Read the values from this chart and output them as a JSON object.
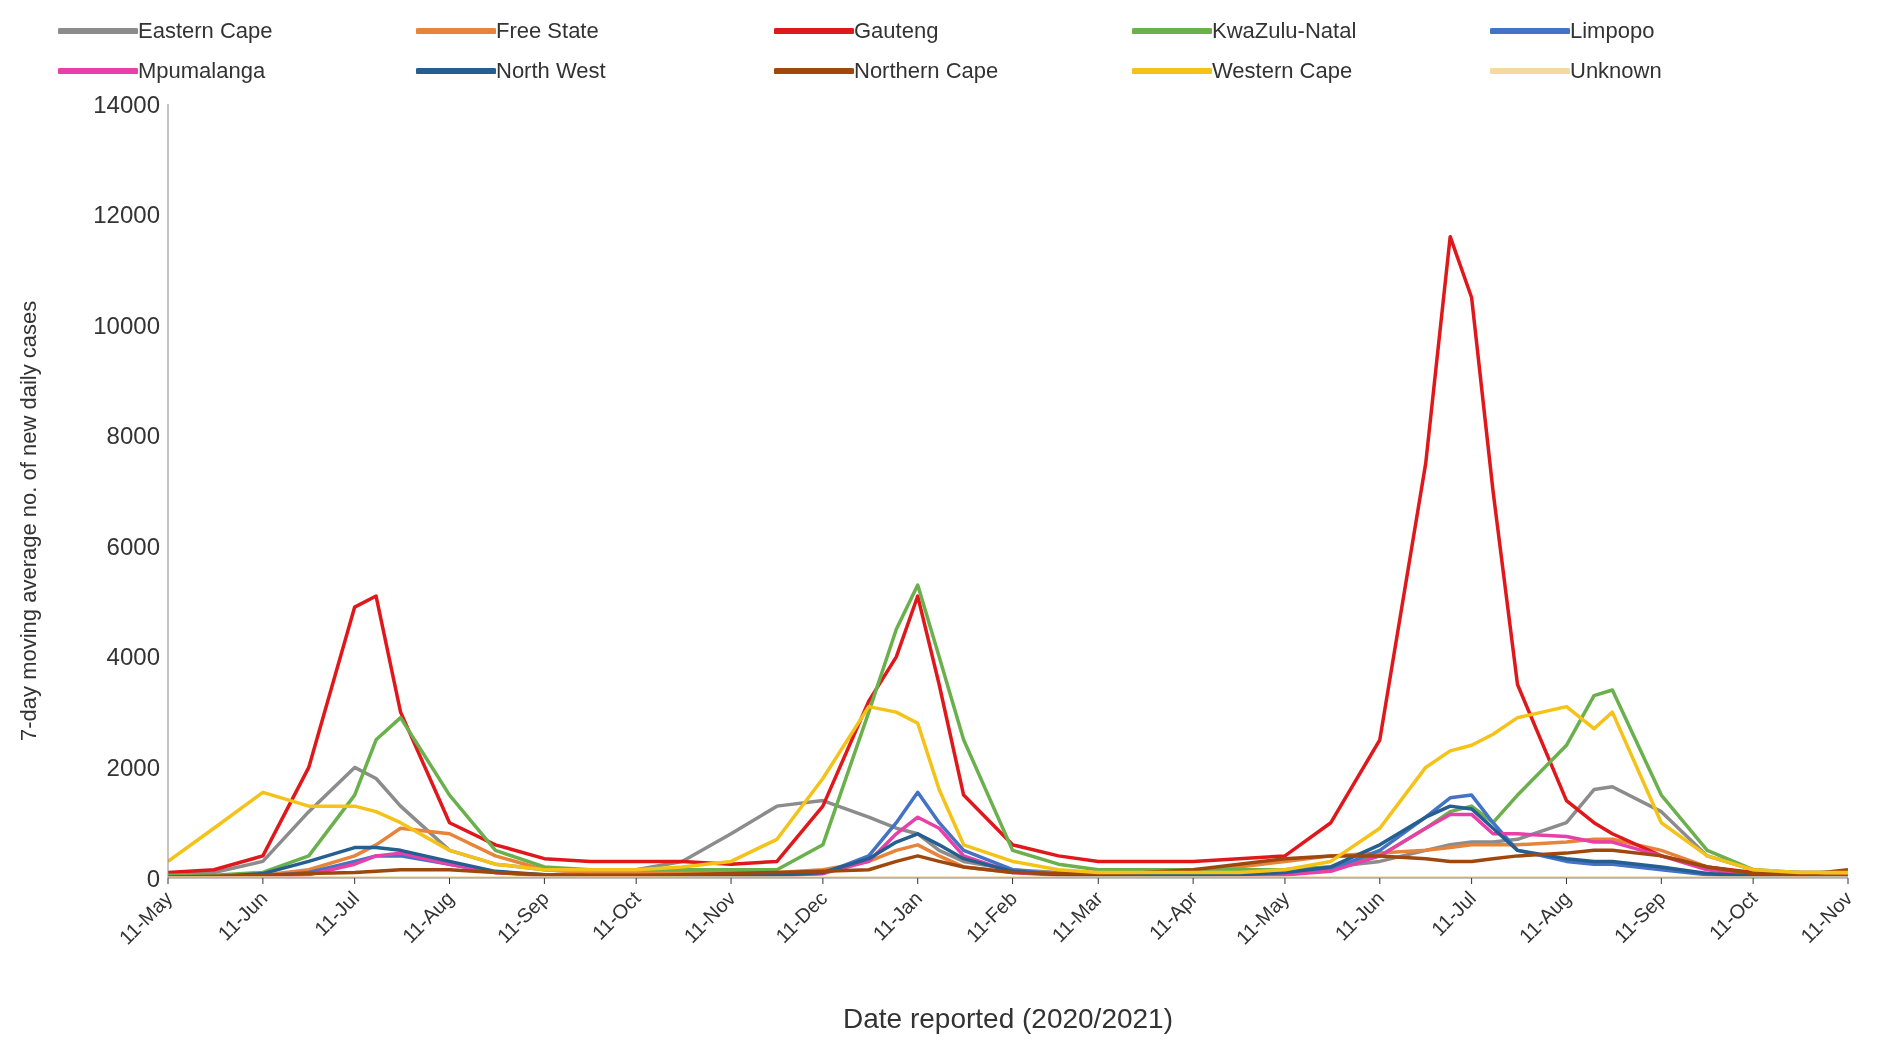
{
  "chart_data": {
    "type": "line",
    "xlabel": "Date reported (2020/2021)",
    "ylabel": "7-day moving average no. of new daily cases",
    "x": [
      "2020-05-11",
      "2020-05-26",
      "2020-06-11",
      "2020-06-26",
      "2020-07-11",
      "2020-07-18",
      "2020-07-26",
      "2020-08-11",
      "2020-08-26",
      "2020-09-11",
      "2020-09-26",
      "2020-10-11",
      "2020-10-26",
      "2020-11-11",
      "2020-11-26",
      "2020-12-11",
      "2020-12-26",
      "2021-01-04",
      "2021-01-11",
      "2021-01-18",
      "2021-01-26",
      "2021-02-11",
      "2021-02-26",
      "2021-03-11",
      "2021-03-26",
      "2021-04-11",
      "2021-04-26",
      "2021-05-11",
      "2021-05-26",
      "2021-06-11",
      "2021-06-26",
      "2021-07-04",
      "2021-07-11",
      "2021-07-18",
      "2021-07-26",
      "2021-08-11",
      "2021-08-20",
      "2021-08-26",
      "2021-09-11",
      "2021-09-26",
      "2021-10-11",
      "2021-10-26",
      "2021-11-11"
    ],
    "series": [
      {
        "name": "Eastern Cape",
        "color": "#8c8c8c",
        "values": [
          50,
          100,
          300,
          1200,
          2000,
          1800,
          1300,
          500,
          250,
          150,
          100,
          150,
          300,
          800,
          1300,
          1400,
          1100,
          900,
          800,
          500,
          300,
          150,
          100,
          80,
          80,
          80,
          100,
          150,
          200,
          300,
          500,
          600,
          650,
          650,
          700,
          1000,
          1600,
          1650,
          1200,
          400,
          150,
          80,
          50
        ]
      },
      {
        "name": "Free State",
        "color": "#e8833a",
        "values": [
          0,
          20,
          50,
          150,
          400,
          600,
          900,
          800,
          400,
          150,
          100,
          100,
          100,
          100,
          100,
          150,
          300,
          500,
          600,
          400,
          200,
          100,
          80,
          80,
          100,
          150,
          200,
          300,
          400,
          450,
          500,
          550,
          600,
          600,
          600,
          650,
          700,
          700,
          500,
          200,
          80,
          50,
          50
        ]
      },
      {
        "name": "Gauteng",
        "color": "#e0181b",
        "values": [
          100,
          150,
          400,
          2000,
          4900,
          5100,
          3000,
          1000,
          600,
          350,
          300,
          300,
          300,
          250,
          300,
          1300,
          3200,
          4000,
          5100,
          3500,
          1500,
          600,
          400,
          300,
          300,
          300,
          350,
          400,
          1000,
          2500,
          7500,
          11600,
          10500,
          7000,
          3500,
          1400,
          1000,
          800,
          400,
          200,
          100,
          100,
          100
        ]
      },
      {
        "name": "KwaZulu-Natal",
        "color": "#6ab04c",
        "values": [
          50,
          50,
          100,
          400,
          1500,
          2500,
          2900,
          1500,
          500,
          200,
          150,
          150,
          150,
          150,
          150,
          600,
          3000,
          4500,
          5300,
          4000,
          2500,
          500,
          250,
          150,
          150,
          150,
          150,
          150,
          200,
          400,
          900,
          1200,
          1300,
          1000,
          1500,
          2400,
          3300,
          3400,
          1500,
          500,
          150,
          100,
          100
        ]
      },
      {
        "name": "Limpopo",
        "color": "#4472c4",
        "values": [
          null,
          null,
          30,
          100,
          300,
          400,
          400,
          250,
          100,
          50,
          30,
          30,
          30,
          30,
          40,
          80,
          400,
          1000,
          1550,
          1000,
          500,
          150,
          60,
          40,
          30,
          30,
          40,
          60,
          150,
          500,
          1100,
          1450,
          1500,
          1000,
          500,
          300,
          250,
          250,
          150,
          60,
          30,
          null,
          null
        ]
      },
      {
        "name": "Mpumalanga",
        "color": "#e83fa8",
        "values": [
          null,
          null,
          20,
          60,
          250,
          400,
          450,
          250,
          100,
          40,
          30,
          30,
          30,
          30,
          40,
          80,
          300,
          800,
          1100,
          900,
          400,
          100,
          50,
          30,
          30,
          30,
          40,
          60,
          120,
          400,
          900,
          1150,
          1150,
          800,
          800,
          750,
          650,
          650,
          400,
          150,
          40,
          20,
          20
        ]
      },
      {
        "name": "North West",
        "color": "#255e91",
        "values": [
          10,
          20,
          80,
          300,
          550,
          550,
          500,
          300,
          120,
          60,
          40,
          40,
          40,
          40,
          50,
          100,
          350,
          650,
          800,
          600,
          350,
          120,
          60,
          40,
          40,
          50,
          60,
          100,
          200,
          600,
          1100,
          1300,
          1250,
          900,
          500,
          350,
          300,
          300,
          200,
          80,
          30,
          20,
          20
        ]
      },
      {
        "name": "Northern Cape",
        "color": "#9e480e",
        "values": [
          20,
          30,
          50,
          80,
          100,
          120,
          150,
          150,
          100,
          60,
          50,
          50,
          60,
          80,
          100,
          120,
          150,
          300,
          400,
          300,
          200,
          100,
          80,
          80,
          100,
          150,
          250,
          350,
          400,
          400,
          350,
          300,
          300,
          350,
          400,
          450,
          500,
          500,
          400,
          200,
          80,
          50,
          150
        ]
      },
      {
        "name": "Western Cape",
        "color": "#f5c218",
        "values": [
          300,
          900,
          1550,
          1300,
          1300,
          1200,
          1000,
          500,
          250,
          150,
          150,
          150,
          200,
          300,
          700,
          1800,
          3100,
          3000,
          2800,
          1600,
          600,
          300,
          150,
          100,
          100,
          100,
          100,
          150,
          300,
          900,
          2000,
          2300,
          2400,
          2600,
          2900,
          3100,
          2700,
          3000,
          1000,
          400,
          150,
          100,
          100
        ]
      },
      {
        "name": "Unknown",
        "color": "#f5d9a0",
        "values": [
          0,
          0,
          0,
          0,
          0,
          0,
          0,
          0,
          0,
          0,
          0,
          0,
          0,
          0,
          0,
          0,
          0,
          0,
          0,
          0,
          0,
          0,
          0,
          0,
          0,
          0,
          0,
          0,
          0,
          0,
          0,
          0,
          0,
          0,
          0,
          0,
          0,
          0,
          0,
          0,
          0,
          0,
          0
        ]
      }
    ],
    "xlim": [
      "2020-05-11",
      "2021-11-11"
    ],
    "xticks": [
      {
        "value": "2020-05-11",
        "label": "11-May"
      },
      {
        "value": "2020-06-11",
        "label": "11-Jun"
      },
      {
        "value": "2020-07-11",
        "label": "11-Jul"
      },
      {
        "value": "2020-08-11",
        "label": "11-Aug"
      },
      {
        "value": "2020-09-11",
        "label": "11-Sep"
      },
      {
        "value": "2020-10-11",
        "label": "11-Oct"
      },
      {
        "value": "2020-11-11",
        "label": "11-Nov"
      },
      {
        "value": "2020-12-11",
        "label": "11-Dec"
      },
      {
        "value": "2021-01-11",
        "label": "11-Jan"
      },
      {
        "value": "2021-02-11",
        "label": "11-Feb"
      },
      {
        "value": "2021-03-11",
        "label": "11-Mar"
      },
      {
        "value": "2021-04-11",
        "label": "11-Apr"
      },
      {
        "value": "2021-05-11",
        "label": "11-May"
      },
      {
        "value": "2021-06-11",
        "label": "11-Jun"
      },
      {
        "value": "2021-07-11",
        "label": "11-Jul"
      },
      {
        "value": "2021-08-11",
        "label": "11-Aug"
      },
      {
        "value": "2021-09-11",
        "label": "11-Sep"
      },
      {
        "value": "2021-10-11",
        "label": "11-Oct"
      },
      {
        "value": "2021-11-11",
        "label": "11-Nov"
      }
    ],
    "ylim": [
      0,
      14000
    ],
    "yticks": [
      0,
      2000,
      4000,
      6000,
      8000,
      10000,
      12000,
      14000
    ],
    "grid": false,
    "legend": "top",
    "marker": "none",
    "line_style": "solid"
  }
}
